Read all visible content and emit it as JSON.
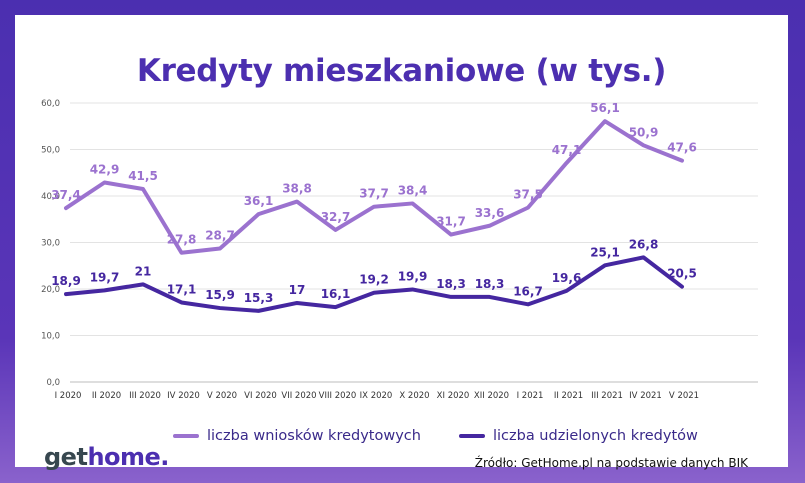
{
  "chart_data": {
    "type": "line",
    "title": "Kredyty mieszkaniowe (w tys.)",
    "xlabel": "",
    "ylabel": "",
    "ylim": [
      0,
      60
    ],
    "y_ticks": [
      "0,0",
      "10,0",
      "20,0",
      "30,0",
      "40,0",
      "50,0",
      "60,0"
    ],
    "grid": true,
    "legend_position": "bottom",
    "categories": [
      "I 2020",
      "II 2020",
      "III 2020",
      "IV 2020",
      "V 2020",
      "VI 2020",
      "VII 2020",
      "VIII 2020",
      "IX 2020",
      "X 2020",
      "XI 2020",
      "XII 2020",
      "I 2021",
      "II 2021",
      "III 2021",
      "IV 2021",
      "V 2021"
    ],
    "series": [
      {
        "name": "liczba wniosków kredytowych",
        "color": "#9b72cf",
        "values": [
          37.4,
          42.9,
          41.5,
          27.8,
          28.7,
          36.1,
          38.8,
          32.7,
          37.7,
          38.4,
          31.7,
          33.6,
          37.5,
          47.1,
          56.1,
          50.9,
          47.6
        ],
        "labels": [
          "37,4",
          "42,9",
          "41,5",
          "27,8",
          "28,7",
          "36,1",
          "38,8",
          "32,7",
          "37,7",
          "38,4",
          "31,7",
          "33,6",
          "37,5",
          "47,1",
          "56,1",
          "50,9",
          "47,6"
        ]
      },
      {
        "name": "liczba udzielonych kredytów",
        "color": "#4527a0",
        "values": [
          18.9,
          19.7,
          21,
          17.1,
          15.9,
          15.3,
          17,
          16.1,
          19.2,
          19.9,
          18.3,
          18.3,
          16.7,
          19.6,
          25.1,
          26.8,
          20.5
        ],
        "labels": [
          "18,9",
          "19,7",
          "21",
          "17,1",
          "15,9",
          "15,3",
          "17",
          "16,1",
          "19,2",
          "19,9",
          "18,3",
          "18,3",
          "16,7",
          "19,6",
          "25,1",
          "26,8",
          "20,5"
        ]
      }
    ]
  },
  "brand": {
    "part1": "get",
    "part2": "home."
  },
  "source": "Źródło: GetHome.pl na podstawie danych BIK"
}
